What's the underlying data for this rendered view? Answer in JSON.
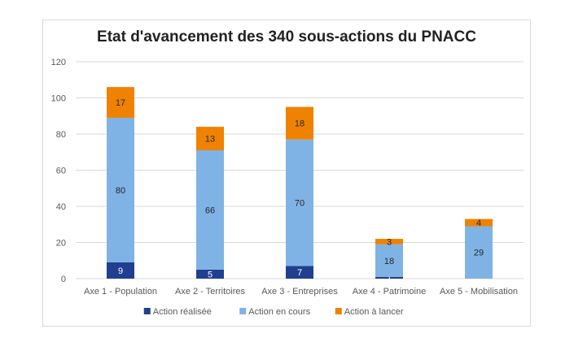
{
  "chart_data": {
    "type": "bar",
    "stacked": true,
    "title": "Etat d'avancement des 340 sous-actions du PNACC",
    "xlabel": "",
    "ylabel": "",
    "ylim": [
      0,
      120
    ],
    "yticks": [
      0,
      20,
      40,
      60,
      80,
      100,
      120
    ],
    "grid": true,
    "legend": "bottom",
    "categories": [
      "Axe 1 - Population",
      "Axe 2 - Territoires",
      "Axe 3 - Entreprises",
      "Axe 4 - Patrimoine",
      "Axe 5 - Mobilisation"
    ],
    "series": [
      {
        "name": "Action réalisée",
        "color": "#203f8f",
        "values": [
          9,
          5,
          7,
          1,
          0
        ],
        "labels": [
          "9",
          "5",
          "7",
          "1",
          ""
        ]
      },
      {
        "name": "Action en cours",
        "color": "#7fb3e6",
        "values": [
          80,
          66,
          70,
          18,
          29
        ],
        "labels": [
          "80",
          "66",
          "70",
          "18",
          "29"
        ]
      },
      {
        "name": "Action à lancer",
        "color": "#ef8200",
        "values": [
          17,
          13,
          18,
          3,
          4
        ],
        "labels": [
          "17",
          "13",
          "18",
          "3",
          "4"
        ]
      }
    ]
  }
}
